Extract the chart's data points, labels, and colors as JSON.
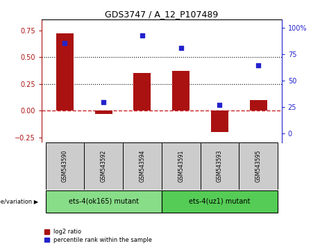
{
  "title": "GDS3747 / A_12_P107489",
  "samples": [
    "GSM543590",
    "GSM543592",
    "GSM543594",
    "GSM543591",
    "GSM543593",
    "GSM543595"
  ],
  "log2_ratio": [
    0.72,
    -0.03,
    0.35,
    0.37,
    -0.2,
    0.1
  ],
  "percentile_rank": [
    86,
    30,
    93,
    81,
    27,
    65
  ],
  "bar_color": "#aa1111",
  "dot_color": "#2222cc",
  "groups": [
    {
      "label": "ets-4(ok165) mutant",
      "indices": [
        0,
        1,
        2
      ],
      "color": "#88dd88"
    },
    {
      "label": "ets-4(uz1) mutant",
      "indices": [
        3,
        4,
        5
      ],
      "color": "#55cc55"
    }
  ],
  "ylim_left": [
    -0.3,
    0.85
  ],
  "ylim_right": [
    -8.57,
    108
  ],
  "yticks_left": [
    -0.25,
    0.0,
    0.25,
    0.5,
    0.75
  ],
  "yticks_right": [
    0,
    25,
    50,
    75,
    100
  ],
  "hlines": [
    0.25,
    0.5
  ],
  "hline_color": "black",
  "hline_style": "dotted",
  "zero_line_color": "#cc2222",
  "zero_line_style": "dashed",
  "legend_labels": [
    "log2 ratio",
    "percentile rank within the sample"
  ],
  "genotype_label": "genotype/variation",
  "bar_width": 0.45,
  "sample_bg_color": "#cccccc",
  "sample_label_fontsize": 5.5,
  "group_label_fontsize": 7.0,
  "title_fontsize": 9
}
